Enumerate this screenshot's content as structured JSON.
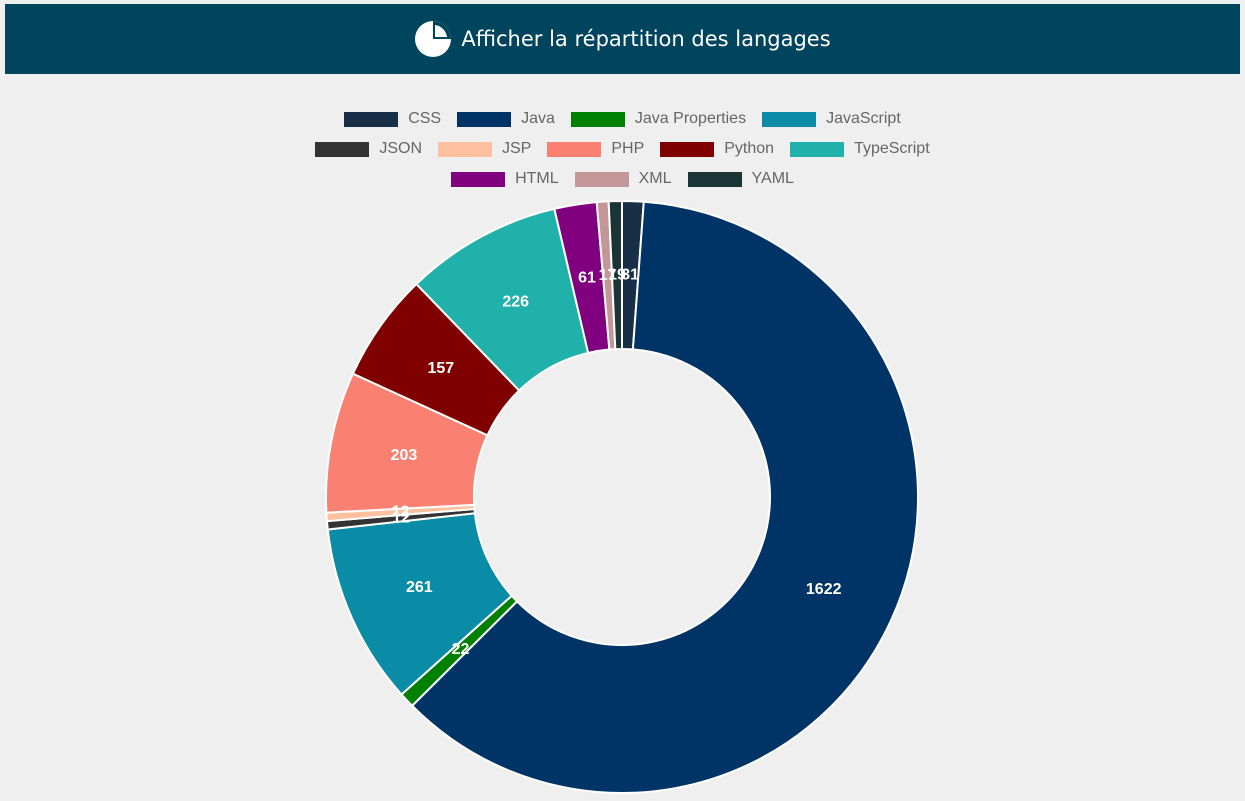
{
  "header": {
    "title": "Afficher la répartition des langages",
    "icon": "pie-chart-icon"
  },
  "chart_data": {
    "type": "pie",
    "variant": "doughnut",
    "title": "",
    "legend_position": "top",
    "start_angle_deg": 0,
    "direction": "clockwise",
    "categories": [
      "CSS",
      "Java",
      "Java Properties",
      "JavaScript",
      "JSON",
      "JSP",
      "PHP",
      "Python",
      "TypeScript",
      "HTML",
      "XML",
      "YAML"
    ],
    "values": [
      31,
      1622,
      22,
      261,
      12,
      12,
      203,
      157,
      226,
      61,
      17,
      19
    ],
    "value_labels": [
      "31",
      "1622",
      "22",
      "261",
      "12",
      "12",
      "203",
      "157",
      "226",
      "61",
      "17",
      "19"
    ],
    "colors": [
      "#173048",
      "#003366",
      "#008000",
      "#0b8ca6",
      "#333333",
      "#ffc09f",
      "#fa8072",
      "#800000",
      "#20b2aa",
      "#800080",
      "#c39797",
      "#1b3536"
    ]
  }
}
